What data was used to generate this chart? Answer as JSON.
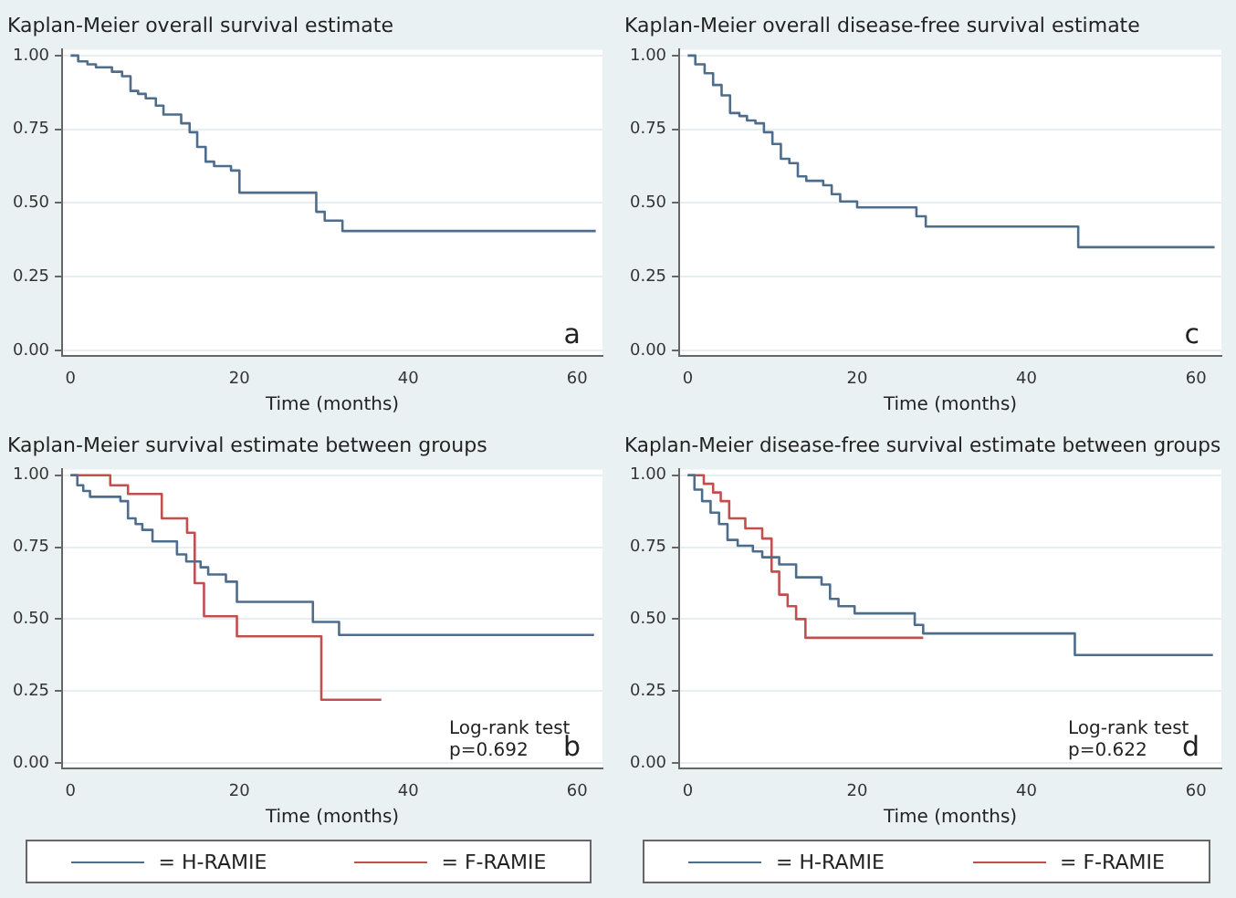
{
  "chart_data": [
    {
      "type": "step",
      "title": "Kaplan-Meier overall survival estimate",
      "xlabel": "Time (months)",
      "xlim": [
        -1,
        63
      ],
      "ylim": [
        -0.02,
        1.02
      ],
      "xticks": [
        0,
        20,
        40,
        60
      ],
      "yticks": [
        {
          "value": 0,
          "label": "0.00"
        },
        {
          "value": 0.25,
          "label": "0.25"
        },
        {
          "value": 0.5,
          "label": "0.50"
        },
        {
          "value": 0.75,
          "label": "0.75"
        },
        {
          "value": 1,
          "label": "1.00"
        }
      ],
      "grid": "y",
      "legend": false,
      "annotations": [
        "a"
      ],
      "series": [
        {
          "color": "#4e6d8c",
          "x": [
            0,
            0.9,
            2,
            3,
            4.9,
            6.1,
            7.1,
            8,
            8.9,
            10.1,
            11,
            13.1,
            14.1,
            15,
            16,
            17,
            19,
            20,
            29.1,
            30.1,
            32.2,
            62.2
          ],
          "values": [
            1,
            0.98,
            0.97,
            0.96,
            0.945,
            0.93,
            0.88,
            0.87,
            0.855,
            0.83,
            0.8,
            0.77,
            0.74,
            0.69,
            0.64,
            0.625,
            0.61,
            0.535,
            0.47,
            0.44,
            0.405,
            0.405
          ]
        }
      ]
    },
    {
      "type": "step",
      "title": "Kaplan-Meier overall disease-free survival estimate",
      "xlabel": "Time (months)",
      "xlim": [
        -1,
        63
      ],
      "ylim": [
        -0.02,
        1.02
      ],
      "xticks": [
        0,
        20,
        40,
        60
      ],
      "yticks": [
        {
          "value": 0,
          "label": "0.00"
        },
        {
          "value": 0.25,
          "label": "0.25"
        },
        {
          "value": 0.5,
          "label": "0.50"
        },
        {
          "value": 0.75,
          "label": "0.75"
        },
        {
          "value": 1,
          "label": "1.00"
        }
      ],
      "grid": "y",
      "legend": false,
      "annotations": [
        "c"
      ],
      "series": [
        {
          "color": "#4e6d8c",
          "x": [
            0,
            0.9,
            2,
            3,
            4,
            5,
            6.1,
            7,
            8,
            9,
            10,
            11,
            12,
            13,
            14,
            16,
            17,
            18,
            20,
            27,
            28.1,
            46.1,
            62.2
          ],
          "values": [
            1,
            0.97,
            0.94,
            0.9,
            0.865,
            0.805,
            0.795,
            0.78,
            0.77,
            0.74,
            0.7,
            0.65,
            0.635,
            0.59,
            0.575,
            0.56,
            0.53,
            0.505,
            0.485,
            0.455,
            0.42,
            0.35,
            0.35
          ]
        }
      ]
    },
    {
      "type": "step",
      "title": "Kaplan-Meier survival estimate between groups",
      "xlabel": "Time (months)",
      "xlim": [
        -1,
        63
      ],
      "ylim": [
        -0.02,
        1.02
      ],
      "xticks": [
        0,
        20,
        40,
        60
      ],
      "yticks": [
        {
          "value": 0,
          "label": "0.00"
        },
        {
          "value": 0.25,
          "label": "0.25"
        },
        {
          "value": 0.5,
          "label": "0.50"
        },
        {
          "value": 0.75,
          "label": "0.75"
        },
        {
          "value": 1,
          "label": "1.00"
        }
      ],
      "grid": "y",
      "legend": "bottom",
      "annotations": [
        "Log-rank test",
        "p=0.692",
        "b"
      ],
      "series": [
        {
          "name": "= H-RAMIE",
          "color": "#4e6d8c",
          "x": [
            0,
            0.8,
            1.5,
            2.3,
            5.9,
            6.8,
            7.7,
            8.5,
            9.7,
            12.6,
            13.7,
            15.4,
            16.3,
            18.4,
            19.7,
            28.7,
            31.8,
            62
          ],
          "values": [
            1,
            0.965,
            0.945,
            0.925,
            0.91,
            0.85,
            0.83,
            0.81,
            0.77,
            0.725,
            0.7,
            0.68,
            0.655,
            0.63,
            0.56,
            0.49,
            0.445,
            0.445
          ]
        },
        {
          "name": "= F-RAMIE",
          "color": "#c0504d",
          "x": [
            0,
            4.7,
            6.8,
            10.8,
            13.8,
            14.7,
            15.8,
            19.7,
            29.7,
            36.8
          ],
          "values": [
            1,
            0.965,
            0.935,
            0.85,
            0.8,
            0.625,
            0.51,
            0.44,
            0.22,
            0.22
          ]
        }
      ]
    },
    {
      "type": "step",
      "title": "Kaplan-Meier disease-free survival estimate between groups",
      "xlabel": "Time (months)",
      "xlim": [
        -1,
        63
      ],
      "ylim": [
        -0.02,
        1.02
      ],
      "xticks": [
        0,
        20,
        40,
        60
      ],
      "yticks": [
        {
          "value": 0,
          "label": "0.00"
        },
        {
          "value": 0.25,
          "label": "0.25"
        },
        {
          "value": 0.5,
          "label": "0.50"
        },
        {
          "value": 0.75,
          "label": "0.75"
        },
        {
          "value": 1,
          "label": "1.00"
        }
      ],
      "grid": "y",
      "legend": "bottom",
      "annotations": [
        "Log-rank test",
        "p=0.622",
        "d"
      ],
      "series": [
        {
          "name": "= H-RAMIE",
          "color": "#4e6d8c",
          "x": [
            0,
            0.8,
            1.7,
            2.7,
            3.7,
            4.7,
            5.9,
            7.7,
            8.8,
            10.8,
            12.8,
            15.8,
            16.8,
            17.8,
            19.7,
            26.8,
            27.8,
            45.7,
            62
          ],
          "values": [
            1,
            0.95,
            0.91,
            0.87,
            0.83,
            0.775,
            0.755,
            0.735,
            0.715,
            0.69,
            0.645,
            0.62,
            0.57,
            0.545,
            0.52,
            0.48,
            0.45,
            0.375,
            0.375
          ]
        },
        {
          "name": "= F-RAMIE",
          "color": "#c0504d",
          "x": [
            0,
            1.9,
            3,
            3.9,
            4.9,
            6.8,
            8.8,
            9.9,
            10.8,
            11.8,
            12.8,
            13.9,
            27.8
          ],
          "values": [
            1,
            0.97,
            0.94,
            0.91,
            0.85,
            0.815,
            0.78,
            0.665,
            0.585,
            0.545,
            0.5,
            0.435,
            0.435
          ]
        }
      ]
    }
  ]
}
